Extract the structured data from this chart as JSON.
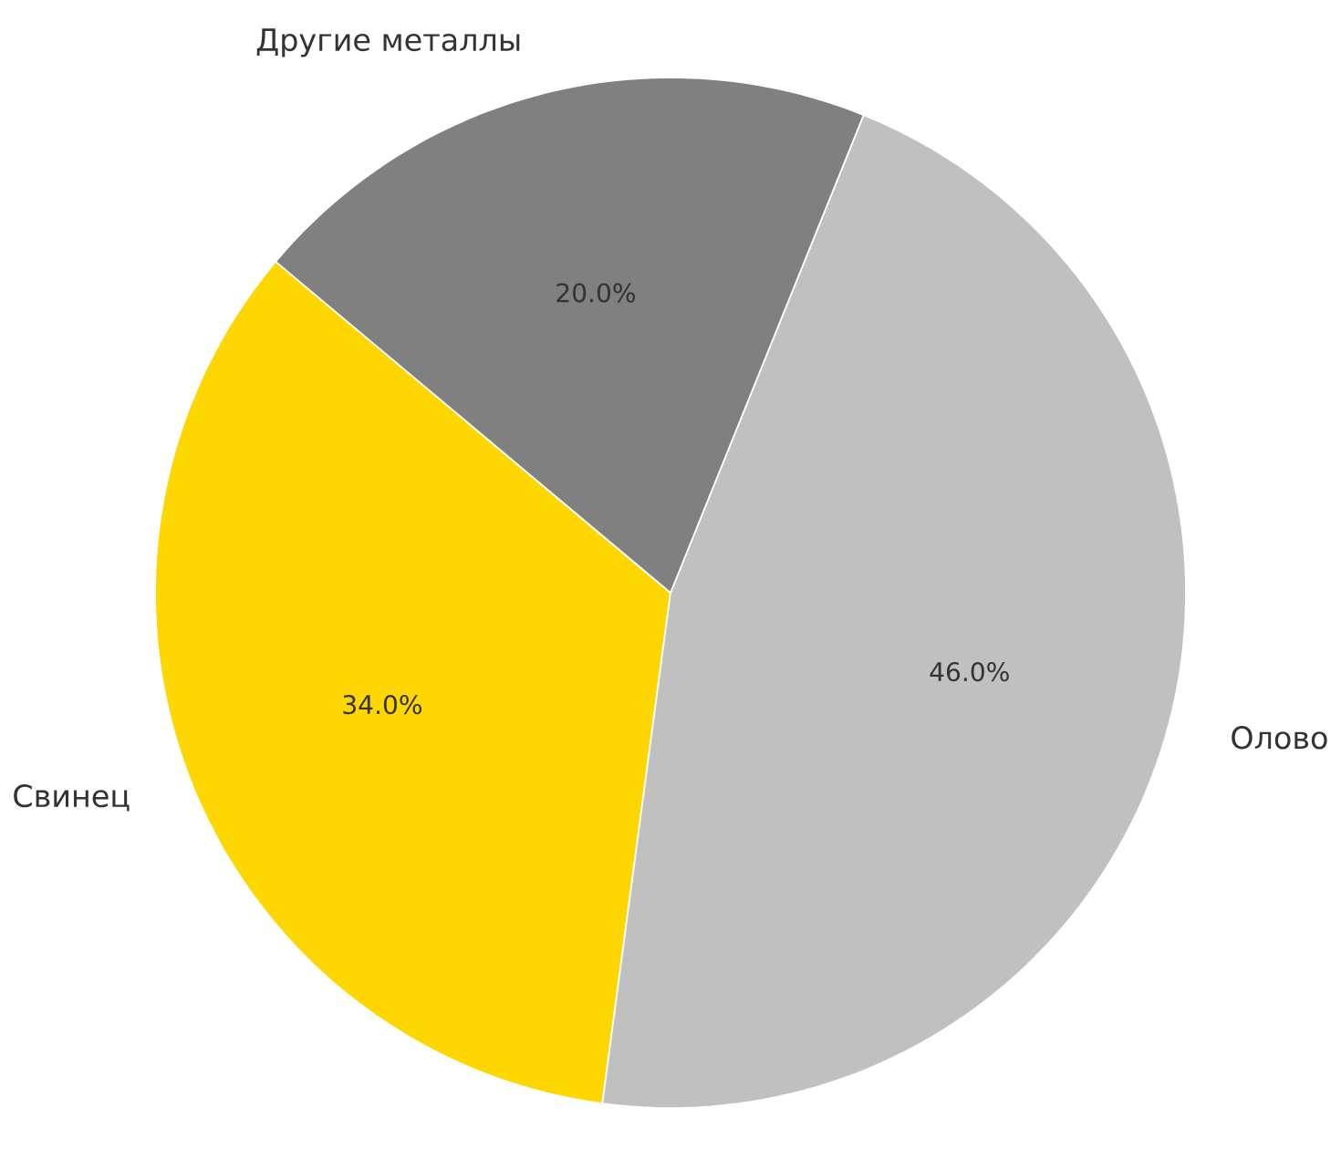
{
  "chart_data": {
    "type": "pie",
    "categories": [
      "Свинец",
      "Олово",
      "Другие металлы"
    ],
    "values": [
      34.0,
      46.0,
      20.0
    ],
    "colors": [
      "#ffd700",
      "#c0c0c0",
      "#808080"
    ],
    "value_labels": [
      "34.0%",
      "46.0%",
      "20.0%"
    ]
  }
}
